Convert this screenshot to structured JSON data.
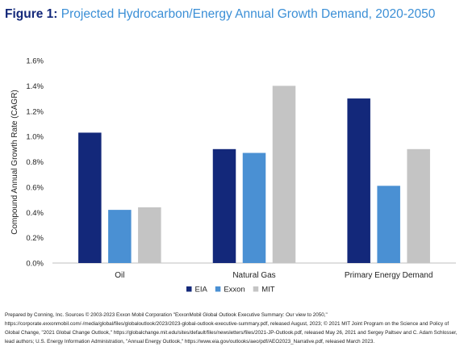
{
  "figure": {
    "label": "Figure 1",
    "label_sep": ":",
    "title": "Projected Hydrocarbon/Energy Annual Growth Demand, 2020-2050"
  },
  "colors": {
    "EIA": "#13287a",
    "Exxon": "#4a90d3",
    "MIT": "#c4c4c4",
    "title_label": "#13287a",
    "title_text": "#3b8fd6"
  },
  "chart_data": {
    "type": "bar",
    "categories": [
      "Oil",
      "Natural Gas",
      "Primary Energy Demand"
    ],
    "series": [
      {
        "name": "EIA",
        "values": [
          1.03,
          0.9,
          1.3
        ]
      },
      {
        "name": "Exxon",
        "values": [
          0.42,
          0.87,
          0.61
        ]
      },
      {
        "name": "MIT",
        "values": [
          0.44,
          1.4,
          0.9
        ]
      }
    ],
    "ylabel": "Compound Annual Growth Rate (CAGR)",
    "xlabel": "",
    "ylim": [
      0,
      1.6
    ],
    "yticks": [
      "0.0%",
      "0.2%",
      "0.4%",
      "0.6%",
      "0.8%",
      "1.0%",
      "1.2%",
      "1.4%",
      "1.6%"
    ],
    "legend_position": "bottom",
    "grid": false
  },
  "source_note": "Prepared by Conning, Inc. Sources © 2003-2023 Exxon Mobil Corporation \"ExxonMobil Global Outlook Executive Summary: Our view to 2050,\" https://corporate.exxonmobil.com/-/media/global/files/globaloutlook/2023/2023-global-outlook-executive-summary.pdf, released August, 2023; © 2021 MIT Joint Program on the Science and Policy of Global Change, \"2021 Global Change Outlook,\" https://globalchange.mit.edu/sites/default/files/newsletters/files/2021-JP-Outlook.pdf, released May 26, 2021 and Sergey Paltsev and C. Adam Schlosser, lead authors; U.S. Energy Information Administration, \"Annual Energy Outlook,\" https://www.eia.gov/outlooks/aeo/pdf/AEO2023_Narrative.pdf, released March 2023."
}
